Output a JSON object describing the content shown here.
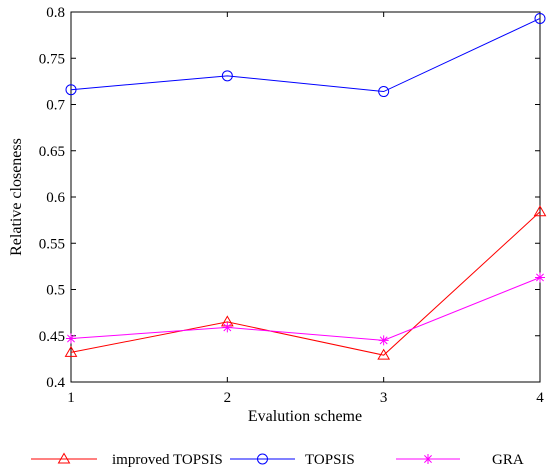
{
  "chart_data": {
    "type": "line",
    "xlabel": "Evalution scheme",
    "ylabel": "Relative closeness",
    "x": [
      1,
      2,
      3,
      4
    ],
    "x_ticks": [
      "1",
      "2",
      "3",
      "4"
    ],
    "xlim": [
      1,
      4
    ],
    "ylim": [
      0.4,
      0.8
    ],
    "y_ticks": [
      "0.4",
      "0.45",
      "0.5",
      "0.55",
      "0.6",
      "0.65",
      "0.7",
      "0.75",
      "0.8"
    ],
    "grid": false,
    "legend_placement": "bottom",
    "series": [
      {
        "name": "improved TOPSIS",
        "values": [
          0.432,
          0.465,
          0.429,
          0.584
        ],
        "color": "#ff0000",
        "marker": "triangle"
      },
      {
        "name": "TOPSIS",
        "values": [
          0.716,
          0.731,
          0.714,
          0.793
        ],
        "color": "#0000ff",
        "marker": "circle"
      },
      {
        "name": "GRA",
        "values": [
          0.447,
          0.459,
          0.445,
          0.513
        ],
        "color": "#ff00ff",
        "marker": "star"
      }
    ]
  }
}
